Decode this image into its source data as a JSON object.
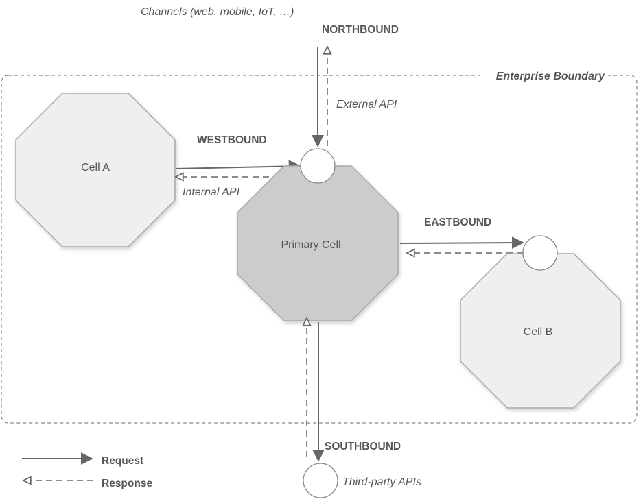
{
  "diagram": {
    "channels_label": "Channels (web, mobile, IoT, …)",
    "boundary_label": "Enterprise Boundary",
    "directions": {
      "north": "NORTHBOUND",
      "west": "WESTBOUND",
      "east": "EASTBOUND",
      "south": "SOUTHBOUND"
    },
    "api_labels": {
      "external": "External API",
      "internal": "Internal API",
      "third_party": "Third-party APIs"
    },
    "cells": {
      "cell_a": "Cell A",
      "primary": "Primary Cell",
      "cell_b": "Cell B"
    },
    "legend": {
      "request": "Request",
      "response": "Response"
    },
    "colors": {
      "cell_fill": "#efefef",
      "primary_fill": "#cccccc",
      "stroke": "#666666",
      "text": "#555555"
    }
  }
}
